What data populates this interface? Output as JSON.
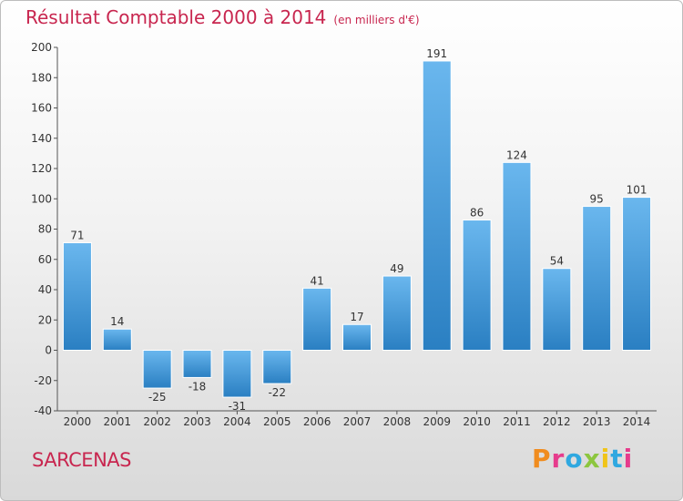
{
  "header": {
    "title": "Résultat Comptable 2000 à 2014",
    "unit": "(en milliers d'€)"
  },
  "footer": {
    "place": "SARCENAS",
    "brand": "Proxiti"
  },
  "colors": {
    "title": "#c8264f",
    "bar_light": "#6ab7ee",
    "bar_dark": "#2a7fc2"
  },
  "chart_data": {
    "type": "bar",
    "title": "Résultat Comptable 2000 à 2014",
    "subtitle": "(en milliers d'€)",
    "categories": [
      "2000",
      "2001",
      "2002",
      "2003",
      "2004",
      "2005",
      "2006",
      "2007",
      "2008",
      "2009",
      "2010",
      "2011",
      "2012",
      "2013",
      "2014"
    ],
    "values": [
      71,
      14,
      -25,
      -18,
      -31,
      -22,
      41,
      17,
      49,
      191,
      86,
      124,
      54,
      95,
      101
    ],
    "ylim": [
      -40,
      200
    ],
    "yticks": [
      -40,
      -20,
      0,
      20,
      40,
      60,
      80,
      100,
      120,
      140,
      160,
      180,
      200
    ],
    "grid": false,
    "xlabel": "",
    "ylabel": ""
  }
}
